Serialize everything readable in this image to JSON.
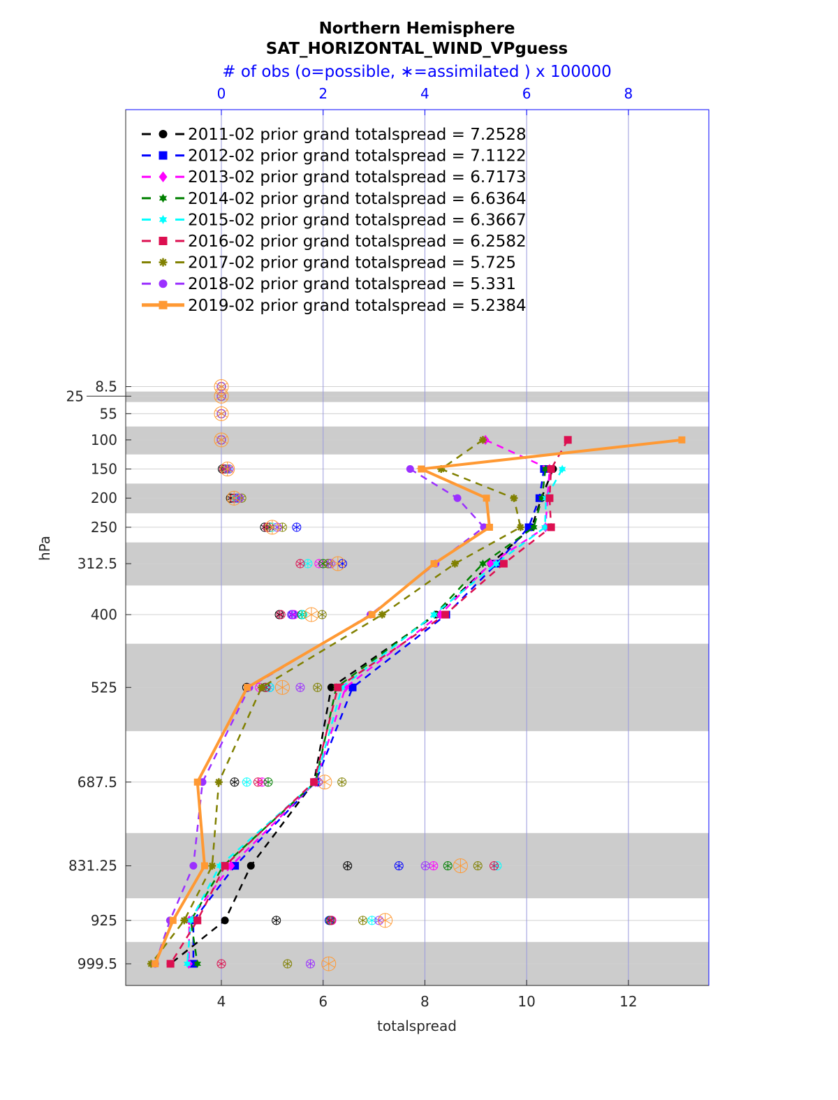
{
  "chart_data": {
    "type": "line",
    "title": "Northern Hemisphere",
    "subtitle": "SAT_HORIZONTAL_WIND_VPguess",
    "top_axis_label": "# of obs (o=possible, ∗=assimilated ) x 100000",
    "xlabel": "totalspread",
    "ylabel": "hPa",
    "xlim": [
      2.12,
      13.58
    ],
    "ylim": [
      -467,
      1036.7
    ],
    "y_reversed": true,
    "x_ticks": [
      4,
      6,
      8,
      10,
      12
    ],
    "x_tick_labels": [
      "4",
      "6",
      "8",
      "10",
      "12"
    ],
    "top_ticks": [
      0,
      2,
      4,
      6,
      8
    ],
    "top_tick_labels": [
      "0",
      "2",
      "4",
      "6",
      "8"
    ],
    "levels": [
      8.5,
      25,
      55,
      100,
      150,
      200,
      250,
      312.5,
      400,
      525,
      687.5,
      831.25,
      925,
      999.5
    ],
    "level_labels": [
      "8.5",
      "25",
      "55",
      "100",
      "150",
      "200",
      "250",
      "312.5",
      "400",
      "525",
      "687.5",
      "831.25",
      "925",
      "999.5"
    ],
    "shaded_layers_hPa": [
      [
        17,
        35
      ],
      [
        77,
        125
      ],
      [
        175,
        226
      ],
      [
        276,
        350
      ],
      [
        450,
        600
      ],
      [
        775,
        887
      ],
      [
        962,
        1037
      ]
    ],
    "legend_position": "top-left",
    "series": [
      {
        "name": "2011-02 prior grand totalspread = 7.2528",
        "color": "#000000",
        "marker": "circle",
        "dash": true,
        "values": [
          null,
          null,
          null,
          null,
          10.52,
          10.29,
          10.1,
          9.3,
          8.22,
          6.16,
          5.82,
          4.58,
          4.07,
          3.0
        ],
        "obs": [
          0,
          0,
          0,
          0,
          0.02,
          0.18,
          0.85,
          2.1,
          1.14,
          0.5,
          0.26,
          2.48,
          1.08,
          null
        ]
      },
      {
        "name": "2012-02 prior grand totalspread = 7.1122",
        "color": "#0000ff",
        "marker": "square",
        "dash": true,
        "values": [
          null,
          null,
          null,
          null,
          10.34,
          10.25,
          10.04,
          9.41,
          8.42,
          6.58,
          5.85,
          4.27,
          3.45,
          3.45
        ],
        "obs": [
          0,
          0,
          0,
          0,
          0.1,
          0.32,
          1.48,
          2.38,
          1.4,
          0.95,
          1.9,
          3.49,
          2.12,
          null
        ]
      },
      {
        "name": "2013-02 prior grand totalspread = 6.7173",
        "color": "#ff00ff",
        "marker": "diamond",
        "dash": true,
        "values": [
          null,
          null,
          null,
          9.19,
          10.45,
          10.41,
          10.37,
          9.29,
          8.3,
          6.44,
          5.85,
          4.19,
          3.37,
          3.36
        ],
        "obs": [
          0,
          0,
          0,
          0,
          0.1,
          0.3,
          0.95,
          1.92,
          1.43,
          0.75,
          0.8,
          4.17,
          2.17,
          null
        ]
      },
      {
        "name": "2014-02 prior grand totalspread = 6.6364",
        "color": "#008000",
        "marker": "hexagram",
        "dash": true,
        "values": [
          null,
          null,
          null,
          null,
          10.37,
          10.3,
          10.14,
          9.14,
          8.19,
          6.26,
          5.85,
          4.04,
          3.4,
          3.53
        ],
        "obs": [
          0,
          0,
          0,
          0,
          0.08,
          0.3,
          0.95,
          2.0,
          1.58,
          0.86,
          0.92,
          4.45,
          2.14,
          null
        ]
      },
      {
        "name": "2015-02 prior grand totalspread = 6.3667",
        "color": "#00ffff",
        "marker": "hexagram",
        "dash": true,
        "values": [
          null,
          null,
          null,
          null,
          10.7,
          10.38,
          10.36,
          9.4,
          8.18,
          6.37,
          5.85,
          3.97,
          3.4,
          3.33
        ],
        "obs": [
          0,
          0,
          0,
          0,
          0.12,
          0.3,
          1.0,
          1.7,
          1.6,
          0.95,
          0.5,
          5.42,
          2.96,
          null
        ]
      },
      {
        "name": "2016-02 prior grand totalspread = 6.2582",
        "color": "#dc0f50",
        "marker": "square",
        "dash": true,
        "values": [
          null,
          null,
          null,
          10.81,
          10.48,
          10.45,
          10.48,
          9.55,
          8.4,
          6.29,
          5.82,
          4.07,
          3.53,
          3.0
        ],
        "obs": [
          0,
          0,
          0,
          0,
          0.05,
          0.25,
          0.9,
          1.55,
          1.17,
          0.88,
          0.72,
          5.36,
          2.16,
          0
        ]
      },
      {
        "name": "2017-02 prior grand totalspread = 5.725",
        "color": "#808000",
        "marker": "asterisk",
        "dash": true,
        "values": [
          null,
          null,
          null,
          9.14,
          8.32,
          9.75,
          9.88,
          8.59,
          7.16,
          4.79,
          3.95,
          3.82,
          3.27,
          2.62
        ],
        "obs": [
          0,
          0,
          0,
          0,
          0.15,
          0.4,
          1.2,
          2.1,
          1.98,
          1.89,
          2.37,
          5.04,
          2.78,
          1.3
        ]
      },
      {
        "name": "2018-02 prior grand totalspread = 5.331",
        "color": "#9b30ff",
        "marker": "circle",
        "dash": true,
        "values": [
          null,
          null,
          null,
          null,
          7.71,
          8.64,
          9.16,
          8.21,
          6.93,
          4.55,
          3.63,
          3.45,
          2.99,
          2.7
        ],
        "obs": [
          0,
          0,
          0,
          0,
          0.15,
          0.35,
          1.1,
          2.15,
          1.38,
          1.55,
          1.9,
          4.01,
          3.1,
          1.75
        ]
      },
      {
        "name": "2019-02 prior grand totalspread = 5.2384",
        "color": "#ff9933",
        "marker": "square",
        "dash": false,
        "values": [
          null,
          null,
          null,
          13.05,
          7.93,
          9.21,
          9.27,
          8.18,
          6.96,
          4.51,
          3.53,
          3.67,
          3.05,
          2.7
        ],
        "obs": [
          0,
          0,
          0,
          0,
          0.12,
          0.25,
          1.0,
          2.29,
          1.77,
          1.2,
          2.03,
          4.7,
          3.22,
          2.11
        ]
      }
    ]
  }
}
